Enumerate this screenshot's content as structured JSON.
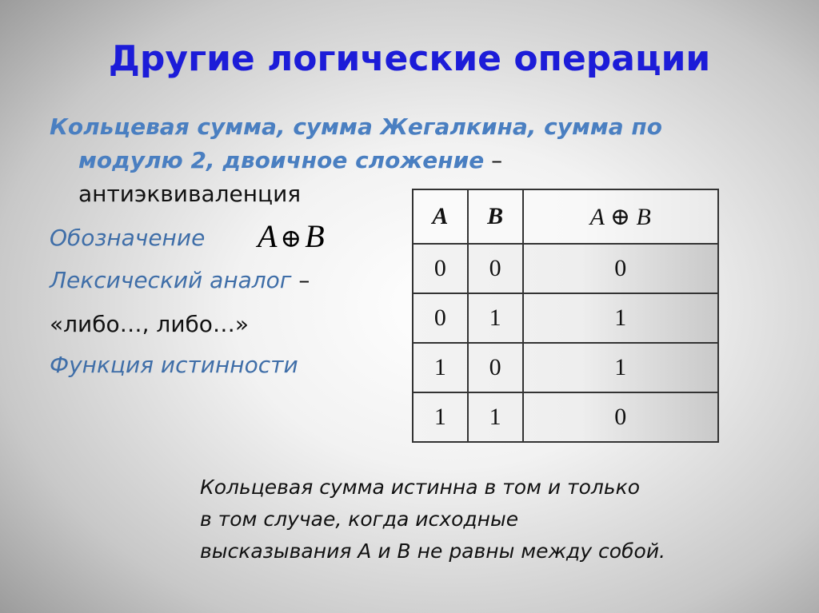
{
  "title": "Другие логические операции",
  "bullets": {
    "names_line1": "Кольцевая сумма, сумма Жегалкина, сумма по",
    "names_line2": "модулю 2, двоичное сложение",
    "dash": " –",
    "term": "антиэквиваленция",
    "notation_label": "Обозначение",
    "notation_formula": {
      "a": "A",
      "op": "⊕",
      "b": "B"
    },
    "lexical_label": "Лексический аналог",
    "lexical_dash": " –",
    "lexical_value": "«либо…, либо…»",
    "truth_function_label": "Функция истинности"
  },
  "truth_table": {
    "headers": [
      "A",
      "B",
      "A ⊕ B"
    ],
    "rows": [
      [
        "0",
        "0",
        "0"
      ],
      [
        "0",
        "1",
        "1"
      ],
      [
        "1",
        "0",
        "1"
      ],
      [
        "1",
        "1",
        "0"
      ]
    ]
  },
  "note": {
    "line1": "Кольцевая сумма истинна в том и только",
    "line2": "в том случае, когда исходные",
    "line3": "высказывания A и B не равны между собой."
  },
  "colors": {
    "title": "#1c1cd8",
    "accent": "#4a7fc1"
  }
}
